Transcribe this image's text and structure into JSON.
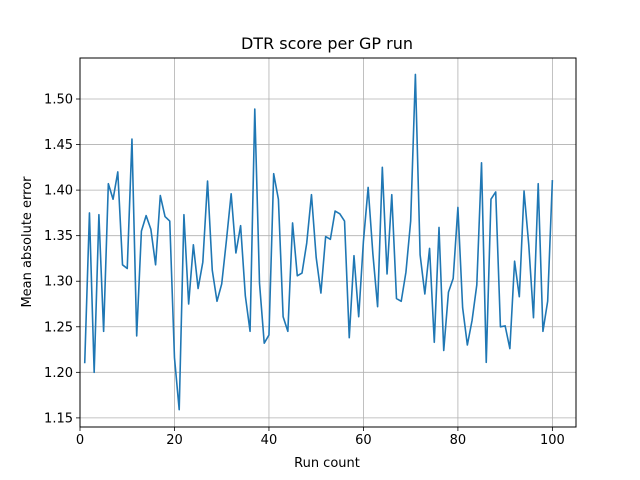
{
  "chart_data": {
    "type": "line",
    "title": "DTR score per GP run",
    "xlabel": "Run count",
    "ylabel": "Mean absolute error",
    "xlim": [
      0,
      105
    ],
    "ylim": [
      1.14,
      1.545
    ],
    "xticks": [
      0,
      20,
      40,
      60,
      80,
      100
    ],
    "yticks": [
      1.15,
      1.2,
      1.25,
      1.3,
      1.35,
      1.4,
      1.45,
      1.5
    ],
    "grid": true,
    "legend": "none",
    "colors": {
      "line": "#1f77b4",
      "grid": "#b0b0b0",
      "axis": "#000000"
    },
    "series": [
      {
        "x": [
          1,
          2,
          3,
          4,
          5,
          6,
          7,
          8,
          9,
          10,
          11,
          12,
          13,
          14,
          15,
          16,
          17,
          18,
          19,
          20,
          21,
          22,
          23,
          24,
          25,
          26,
          27,
          28,
          29,
          30,
          31,
          32,
          33,
          34,
          35,
          36,
          37,
          38,
          39,
          40,
          41,
          42,
          43,
          44,
          45,
          46,
          47,
          48,
          49,
          50,
          51,
          52,
          53,
          54,
          55,
          56,
          57,
          58,
          59,
          60,
          61,
          62,
          63,
          64,
          65,
          66,
          67,
          68,
          69,
          70,
          71,
          72,
          73,
          74,
          75,
          76,
          77,
          78,
          79,
          80,
          81,
          82,
          83,
          84,
          85,
          86,
          87,
          88,
          89,
          90,
          91,
          92,
          93,
          94,
          95,
          96,
          97,
          98,
          99,
          100
        ],
        "values": [
          1.21,
          1.375,
          1.2,
          1.373,
          1.245,
          1.407,
          1.39,
          1.42,
          1.318,
          1.314,
          1.456,
          1.24,
          1.355,
          1.372,
          1.357,
          1.318,
          1.394,
          1.371,
          1.366,
          1.216,
          1.159,
          1.373,
          1.275,
          1.34,
          1.292,
          1.321,
          1.41,
          1.312,
          1.278,
          1.297,
          1.345,
          1.396,
          1.331,
          1.361,
          1.284,
          1.245,
          1.489,
          1.298,
          1.232,
          1.241,
          1.418,
          1.39,
          1.261,
          1.245,
          1.364,
          1.306,
          1.309,
          1.342,
          1.395,
          1.326,
          1.287,
          1.349,
          1.346,
          1.377,
          1.374,
          1.366,
          1.238,
          1.328,
          1.261,
          1.344,
          1.403,
          1.33,
          1.272,
          1.425,
          1.308,
          1.395,
          1.281,
          1.278,
          1.31,
          1.366,
          1.527,
          1.329,
          1.286,
          1.336,
          1.233,
          1.359,
          1.224,
          1.288,
          1.303,
          1.381,
          1.271,
          1.23,
          1.257,
          1.296,
          1.43,
          1.211,
          1.39,
          1.398,
          1.25,
          1.251,
          1.226,
          1.322,
          1.283,
          1.399,
          1.34,
          1.26,
          1.407,
          1.245,
          1.278,
          1.411
        ]
      }
    ]
  }
}
